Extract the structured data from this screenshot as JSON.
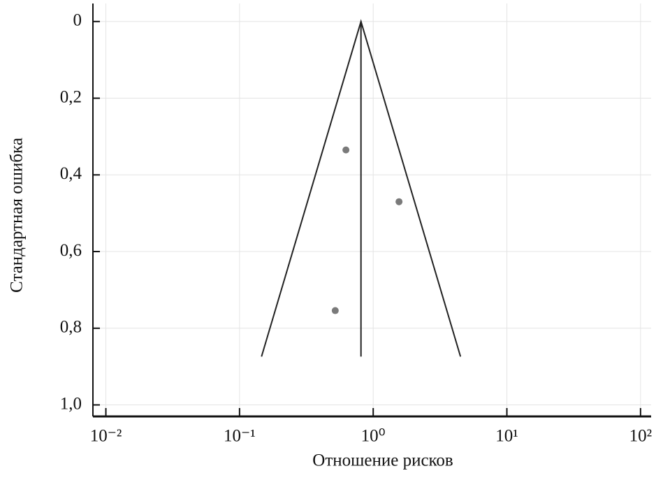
{
  "chart_data": {
    "type": "scatter",
    "xlabel": "Отношение рисков",
    "ylabel": "Стандартная ошибка",
    "log_x": true,
    "invert_y": true,
    "grid": true,
    "xlim": [
      0.008,
      120
    ],
    "ylim": [
      -0.047,
      1.03
    ],
    "xticks": [
      {
        "value": 0.01,
        "label": "10⁻²"
      },
      {
        "value": 0.1,
        "label": "10⁻¹"
      },
      {
        "value": 1,
        "label": "10⁰"
      },
      {
        "value": 10,
        "label": "10¹"
      },
      {
        "value": 100,
        "label": "10²"
      }
    ],
    "yticks": [
      0,
      {
        "value": 0.2,
        "label": "0,2"
      },
      {
        "value": 0.4,
        "label": "0,4"
      },
      {
        "value": 0.6,
        "label": "0,6"
      },
      {
        "value": 0.8,
        "label": "0,8"
      },
      {
        "value": 1,
        "label": "1,0"
      }
    ],
    "points": {
      "x": [
        0.625,
        1.56,
        0.52
      ],
      "y": [
        0.335,
        0.47,
        0.754
      ],
      "color": "#7a7a7a"
    },
    "funnel": {
      "x": [
        0.146,
        0.81,
        4.5
      ],
      "y": [
        0.874,
        0,
        0.874
      ],
      "color": "#222222"
    },
    "pooled": {
      "x": [
        0.81,
        0.81
      ],
      "y": [
        0,
        0.874
      ],
      "color": "#222222"
    }
  }
}
